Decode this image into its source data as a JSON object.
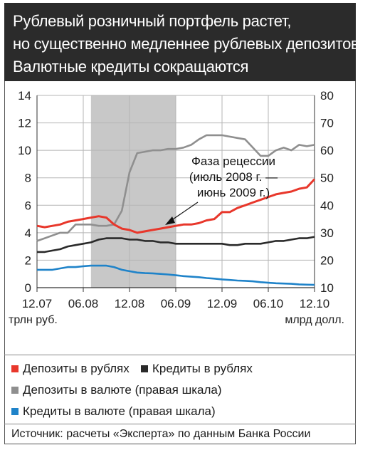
{
  "title_lines": [
    "Рублевый розничный портфель растет,",
    "но существенно медленнее рублевых депозитов.",
    "Валютные кредиты сокращаются"
  ],
  "colors": {
    "red": "#e8372b",
    "black": "#2a2a2a",
    "gray": "#8f8f8f",
    "blue": "#1f83c9",
    "shade": "#c8c8c8",
    "title_bg": "#2b2b2b"
  },
  "legend": [
    {
      "label": "Депозиты в рублях",
      "color": "#e8372b"
    },
    {
      "label": "Кредиты в рублях",
      "color": "#2a2a2a"
    },
    {
      "label": "Депозиты в валюте (правая шкала)",
      "color": "#8f8f8f"
    },
    {
      "label": "Кредиты в валюте (правая шкала)",
      "color": "#1f83c9"
    }
  ],
  "source": "Источник: расчеты «Эксперта» по данным Банка России",
  "chart_data": {
    "type": "line",
    "x": [
      "12.07",
      "01.08",
      "02.08",
      "03.08",
      "04.08",
      "05.08",
      "06.08",
      "07.08",
      "08.08",
      "09.08",
      "10.08",
      "11.08",
      "12.08",
      "01.09",
      "02.09",
      "03.09",
      "04.09",
      "05.09",
      "06.09",
      "07.09",
      "08.09",
      "09.09",
      "10.09",
      "11.09",
      "12.09",
      "01.10",
      "02.10",
      "03.10",
      "04.10",
      "05.10",
      "06.10",
      "07.10",
      "08.10",
      "09.10",
      "10.10",
      "11.10",
      "12.10"
    ],
    "x_tick_labels": [
      "12.07",
      "06.08",
      "12.08",
      "06.09",
      "12.09",
      "06.10",
      "12.10"
    ],
    "ylim_left": [
      0,
      14
    ],
    "ylim_right": [
      10,
      80
    ],
    "left_ticks": [
      0,
      2,
      4,
      6,
      8,
      10,
      12,
      14
    ],
    "right_ticks": [
      10,
      20,
      30,
      40,
      50,
      60,
      70,
      80
    ],
    "left_unit": "трлн руб.",
    "right_unit": "млрд долл.",
    "grid": true,
    "shaded_period": {
      "from": "07.08",
      "to": "06.09"
    },
    "annotation": [
      "Фаза рецессии",
      "(июль 2008 г. —",
      "июнь 2009 г.)"
    ],
    "series": [
      {
        "name": "Депозиты в рублях",
        "axis": "left",
        "color": "#e8372b",
        "values": [
          4.5,
          4.4,
          4.5,
          4.6,
          4.8,
          4.9,
          5.0,
          5.1,
          5.2,
          5.1,
          4.6,
          4.3,
          4.2,
          4.0,
          4.1,
          4.2,
          4.3,
          4.4,
          4.5,
          4.6,
          4.6,
          4.7,
          4.9,
          5.0,
          5.5,
          5.5,
          5.8,
          6.0,
          6.2,
          6.4,
          6.6,
          6.8,
          6.9,
          7.0,
          7.2,
          7.3,
          7.9
        ]
      },
      {
        "name": "Кредиты в рублях",
        "axis": "left",
        "color": "#2a2a2a",
        "values": [
          2.6,
          2.6,
          2.7,
          2.8,
          3.0,
          3.1,
          3.2,
          3.3,
          3.5,
          3.6,
          3.6,
          3.6,
          3.5,
          3.5,
          3.4,
          3.4,
          3.3,
          3.3,
          3.2,
          3.2,
          3.2,
          3.2,
          3.2,
          3.2,
          3.2,
          3.1,
          3.1,
          3.2,
          3.2,
          3.2,
          3.3,
          3.4,
          3.4,
          3.5,
          3.6,
          3.6,
          3.7
        ]
      },
      {
        "name": "Депозиты в валюте (правая шкала)",
        "axis": "right",
        "color": "#8f8f8f",
        "values": [
          27,
          28,
          29,
          30,
          30,
          33,
          33,
          33,
          32.5,
          32.5,
          33,
          38,
          52,
          59,
          59.5,
          60,
          60,
          60.5,
          60.5,
          61,
          62,
          64,
          65.5,
          65.5,
          65.5,
          65,
          64.5,
          64,
          61,
          58,
          58,
          60,
          61,
          60,
          62,
          61.5,
          62
        ]
      },
      {
        "name": "Кредиты в валюте (правая шкала)",
        "axis": "right",
        "color": "#1f83c9",
        "values": [
          16.5,
          16.5,
          16.5,
          17,
          17.5,
          17.5,
          17.8,
          18,
          18,
          18,
          17.5,
          16.5,
          16,
          15.5,
          15.3,
          15.2,
          15,
          14.8,
          14.5,
          14.2,
          14,
          13.8,
          13.5,
          13.3,
          13,
          12.8,
          12.6,
          12.5,
          12.3,
          12,
          11.8,
          11.6,
          11.5,
          11.4,
          11.2,
          11.1,
          11
        ]
      }
    ]
  }
}
